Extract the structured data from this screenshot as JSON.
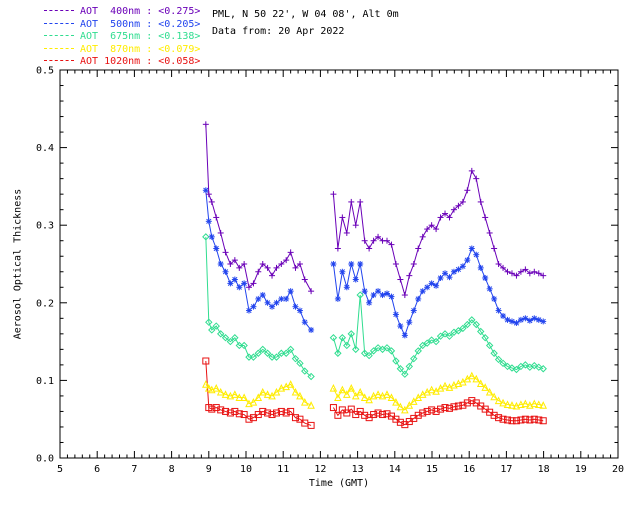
{
  "header": {
    "site_info": "PML, N 50 22', W 04 08', Alt 0m",
    "date_info": "Data from: 20 Apr 2022"
  },
  "legend": {
    "items": [
      {
        "text": "AOT  400nm : <0.275>",
        "color": "#6a00b8",
        "marker": "plus"
      },
      {
        "text": "AOT  500nm : <0.205>",
        "color": "#2244ee",
        "marker": "asterisk"
      },
      {
        "text": "AOT  675nm : <0.138>",
        "color": "#30dd90",
        "marker": "diamond"
      },
      {
        "text": "AOT  870nm : <0.079>",
        "color": "#ffec00",
        "marker": "triangle"
      },
      {
        "text": "AOT 1020nm : <0.058>",
        "color": "#e81212",
        "marker": "square"
      }
    ]
  },
  "chart_data": {
    "type": "line",
    "title": "",
    "xlabel": "Time (GMT)",
    "ylabel": "Aerosol Optical Thickness",
    "xlim": [
      5,
      20
    ],
    "ylim": [
      0,
      0.5
    ],
    "x_ticks": [
      5,
      6,
      7,
      8,
      9,
      10,
      11,
      12,
      13,
      14,
      15,
      16,
      17,
      18,
      19,
      20
    ],
    "y_ticks": [
      0.0,
      0.1,
      0.2,
      0.3,
      0.4,
      0.5
    ],
    "y_tick_labels": [
      "0.0",
      "0.1",
      "0.2",
      "0.3",
      "0.4",
      "0.5"
    ],
    "x_minor_step": 0.2,
    "y_minor_step": 0.02,
    "grid": false,
    "legend_position": "top-left",
    "segments_x": [
      [
        8.92,
        9.0,
        9.08,
        9.2,
        9.32,
        9.45,
        9.58,
        9.7,
        9.82,
        9.95,
        10.08,
        10.2,
        10.33,
        10.45,
        10.58,
        10.7,
        10.82,
        10.95,
        11.08,
        11.2,
        11.33,
        11.45,
        11.58,
        11.75
      ],
      [
        12.35,
        12.47,
        12.59,
        12.71,
        12.83,
        12.95,
        13.07,
        13.19,
        13.31,
        13.43,
        13.55,
        13.67,
        13.79,
        13.91,
        14.03,
        14.15,
        14.27,
        14.39,
        14.51,
        14.63,
        14.75,
        14.87,
        14.99,
        15.11,
        15.23,
        15.35,
        15.47,
        15.59,
        15.71,
        15.83,
        15.95,
        16.07,
        16.19,
        16.31,
        16.43,
        16.55,
        16.67,
        16.79,
        16.91,
        17.03,
        17.15,
        17.27,
        17.39,
        17.51,
        17.63,
        17.75,
        17.87,
        17.99
      ]
    ],
    "series": [
      {
        "name": "AOT 400nm",
        "mean": 0.275,
        "color": "#6a00b8",
        "marker": "plus",
        "values": [
          [
            0.43,
            0.34,
            0.33,
            0.31,
            0.29,
            0.265,
            0.25,
            0.255,
            0.245,
            0.25,
            0.22,
            0.225,
            0.24,
            0.25,
            0.245,
            0.235,
            0.245,
            0.25,
            0.255,
            0.265,
            0.245,
            0.25,
            0.23,
            0.215
          ],
          [
            0.34,
            0.27,
            0.31,
            0.29,
            0.33,
            0.3,
            0.33,
            0.28,
            0.27,
            0.28,
            0.285,
            0.28,
            0.28,
            0.275,
            0.25,
            0.23,
            0.21,
            0.235,
            0.25,
            0.27,
            0.285,
            0.295,
            0.3,
            0.295,
            0.31,
            0.315,
            0.31,
            0.32,
            0.325,
            0.33,
            0.345,
            0.37,
            0.36,
            0.33,
            0.31,
            0.29,
            0.27,
            0.25,
            0.245,
            0.24,
            0.238,
            0.235,
            0.24,
            0.243,
            0.238,
            0.24,
            0.238,
            0.235
          ]
        ]
      },
      {
        "name": "AOT 500nm",
        "mean": 0.205,
        "color": "#2244ee",
        "marker": "asterisk",
        "values": [
          [
            0.345,
            0.305,
            0.285,
            0.27,
            0.25,
            0.24,
            0.225,
            0.23,
            0.22,
            0.225,
            0.19,
            0.195,
            0.205,
            0.21,
            0.2,
            0.195,
            0.2,
            0.205,
            0.205,
            0.215,
            0.195,
            0.19,
            0.175,
            0.165
          ],
          [
            0.25,
            0.205,
            0.24,
            0.22,
            0.25,
            0.23,
            0.25,
            0.215,
            0.2,
            0.21,
            0.215,
            0.21,
            0.212,
            0.208,
            0.185,
            0.17,
            0.158,
            0.175,
            0.19,
            0.205,
            0.215,
            0.22,
            0.225,
            0.222,
            0.232,
            0.238,
            0.233,
            0.24,
            0.243,
            0.247,
            0.255,
            0.27,
            0.262,
            0.245,
            0.232,
            0.218,
            0.205,
            0.19,
            0.183,
            0.178,
            0.176,
            0.174,
            0.178,
            0.18,
            0.177,
            0.18,
            0.178,
            0.176
          ]
        ]
      },
      {
        "name": "AOT 675nm",
        "mean": 0.138,
        "color": "#30dd90",
        "marker": "diamond",
        "values": [
          [
            0.285,
            0.175,
            0.165,
            0.17,
            0.16,
            0.155,
            0.15,
            0.155,
            0.145,
            0.145,
            0.13,
            0.13,
            0.135,
            0.14,
            0.135,
            0.13,
            0.13,
            0.135,
            0.135,
            0.14,
            0.128,
            0.122,
            0.112,
            0.105
          ],
          [
            0.155,
            0.135,
            0.155,
            0.145,
            0.16,
            0.14,
            0.21,
            0.135,
            0.132,
            0.138,
            0.142,
            0.14,
            0.142,
            0.138,
            0.125,
            0.115,
            0.108,
            0.118,
            0.128,
            0.138,
            0.145,
            0.148,
            0.152,
            0.15,
            0.157,
            0.16,
            0.157,
            0.162,
            0.164,
            0.167,
            0.172,
            0.178,
            0.172,
            0.163,
            0.155,
            0.145,
            0.135,
            0.127,
            0.122,
            0.118,
            0.116,
            0.114,
            0.118,
            0.12,
            0.117,
            0.119,
            0.117,
            0.115
          ]
        ]
      },
      {
        "name": "AOT 870nm",
        "mean": 0.079,
        "color": "#ffec00",
        "marker": "triangle",
        "values": [
          [
            0.095,
            0.09,
            0.088,
            0.09,
            0.085,
            0.082,
            0.08,
            0.082,
            0.078,
            0.078,
            0.07,
            0.072,
            0.078,
            0.085,
            0.082,
            0.08,
            0.085,
            0.09,
            0.092,
            0.095,
            0.085,
            0.08,
            0.072,
            0.068
          ],
          [
            0.09,
            0.078,
            0.088,
            0.082,
            0.09,
            0.08,
            0.085,
            0.078,
            0.075,
            0.08,
            0.082,
            0.08,
            0.082,
            0.078,
            0.072,
            0.066,
            0.062,
            0.068,
            0.073,
            0.078,
            0.082,
            0.085,
            0.088,
            0.086,
            0.09,
            0.093,
            0.091,
            0.094,
            0.096,
            0.098,
            0.102,
            0.106,
            0.102,
            0.096,
            0.091,
            0.085,
            0.079,
            0.074,
            0.071,
            0.069,
            0.068,
            0.067,
            0.069,
            0.07,
            0.068,
            0.07,
            0.069,
            0.068
          ]
        ]
      },
      {
        "name": "AOT 1020nm",
        "mean": 0.058,
        "color": "#e81212",
        "marker": "square",
        "values": [
          [
            0.125,
            0.065,
            0.063,
            0.065,
            0.062,
            0.06,
            0.058,
            0.06,
            0.057,
            0.056,
            0.05,
            0.052,
            0.056,
            0.06,
            0.058,
            0.056,
            0.058,
            0.06,
            0.058,
            0.06,
            0.052,
            0.05,
            0.045,
            0.042
          ],
          [
            0.065,
            0.055,
            0.062,
            0.058,
            0.063,
            0.056,
            0.06,
            0.055,
            0.052,
            0.056,
            0.058,
            0.056,
            0.057,
            0.054,
            0.05,
            0.046,
            0.043,
            0.047,
            0.051,
            0.055,
            0.058,
            0.06,
            0.062,
            0.06,
            0.063,
            0.065,
            0.064,
            0.066,
            0.067,
            0.068,
            0.071,
            0.074,
            0.071,
            0.067,
            0.063,
            0.059,
            0.055,
            0.052,
            0.05,
            0.049,
            0.048,
            0.048,
            0.049,
            0.05,
            0.049,
            0.05,
            0.049,
            0.048
          ]
        ]
      }
    ]
  }
}
